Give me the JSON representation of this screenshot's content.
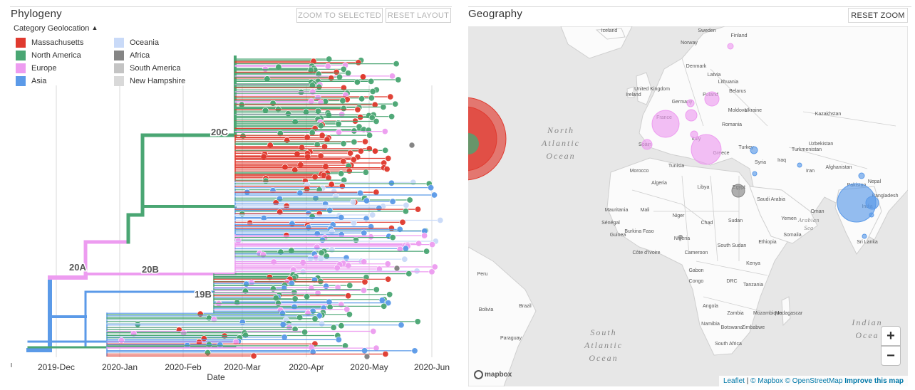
{
  "phylogeny": {
    "title": "Phylogeny",
    "buttons": {
      "zoom_selected": "ZOOM TO SELECTED",
      "reset_layout": "RESET LAYOUT"
    },
    "legend": {
      "title": "Category Geolocation",
      "toggle_icon": "caret-up-icon",
      "items": [
        {
          "label": "Massachusetts",
          "color": "#e03a2f"
        },
        {
          "label": "North America",
          "color": "#4aa673"
        },
        {
          "label": "Europe",
          "color": "#ed9cf0"
        },
        {
          "label": "Asia",
          "color": "#5b9ae8"
        },
        {
          "label": "Oceania",
          "color": "#c9daf8"
        },
        {
          "label": "Africa",
          "color": "#858585"
        },
        {
          "label": "South America",
          "color": "#c4c4c4"
        },
        {
          "label": "New Hampshire",
          "color": "#d9d9d9"
        }
      ]
    },
    "clades": [
      "20C",
      "20A",
      "20B",
      "19B"
    ],
    "x_axis": {
      "label": "Date",
      "ticks": [
        "2019-Dec",
        "2020-Jan",
        "2020-Feb",
        "2020-Mar",
        "2020-Apr",
        "2020-May",
        "2020-Jun"
      ]
    }
  },
  "geography": {
    "title": "Geography",
    "buttons": {
      "reset_zoom": "RESET ZOOM"
    },
    "zoom_in": "+",
    "zoom_out": "−",
    "logo": "mapbox",
    "attribution": {
      "leaflet": "Leaflet",
      "mapbox": "© Mapbox",
      "osm": "© OpenStreetMap",
      "improve": "Improve this map",
      "divider": "|"
    },
    "oceans": [
      {
        "lines": [
          "North",
          "Atlantic",
          "Ocean"
        ]
      },
      {
        "lines": [
          "South",
          "Atlantic",
          "Ocean"
        ]
      },
      {
        "lines": [
          "Indian",
          "Ocea"
        ]
      },
      {
        "lines": [
          "Arabian",
          "Sea"
        ]
      }
    ],
    "places": [
      "Iceland",
      "Sweden",
      "Finland",
      "Norway",
      "Denmark",
      "United Kingdom",
      "Ireland",
      "Germany",
      "Poland",
      "Belarus",
      "Ukraine",
      "France",
      "Romania",
      "Spain",
      "Italy",
      "Turkey",
      "Greece",
      "Tunisia",
      "Morocco",
      "Algeria",
      "Libya",
      "Egypt",
      "Syria",
      "Iraq",
      "Iran",
      "Saudi Arabia",
      "Oman",
      "Yemen",
      "Kazakhstan",
      "Uzbekistan",
      "Turkmenistan",
      "Afghanistan",
      "Pakistan",
      "India",
      "Nepal",
      "Bangladesh",
      "Sri Lanka",
      "Mauritania",
      "Mali",
      "Niger",
      "Chad",
      "Sudan",
      "South Sudan",
      "Ethiopia",
      "Somalia",
      "Burkina Faso",
      "Nigeria",
      "Cameroon",
      "Gabon",
      "DRC",
      "Kenya",
      "Tanzania",
      "Angola",
      "Zambia",
      "Namibia",
      "Botswana",
      "Zimbabwe",
      "Mozambique",
      "Madagascar",
      "South Africa",
      "Peru",
      "Bolivia",
      "Brazil",
      "Paraguay",
      "Sénégal",
      "Guinea",
      "Congo",
      "Côte d'Ivoire",
      "Moldova",
      "Latvia",
      "Lithuania"
    ]
  }
}
